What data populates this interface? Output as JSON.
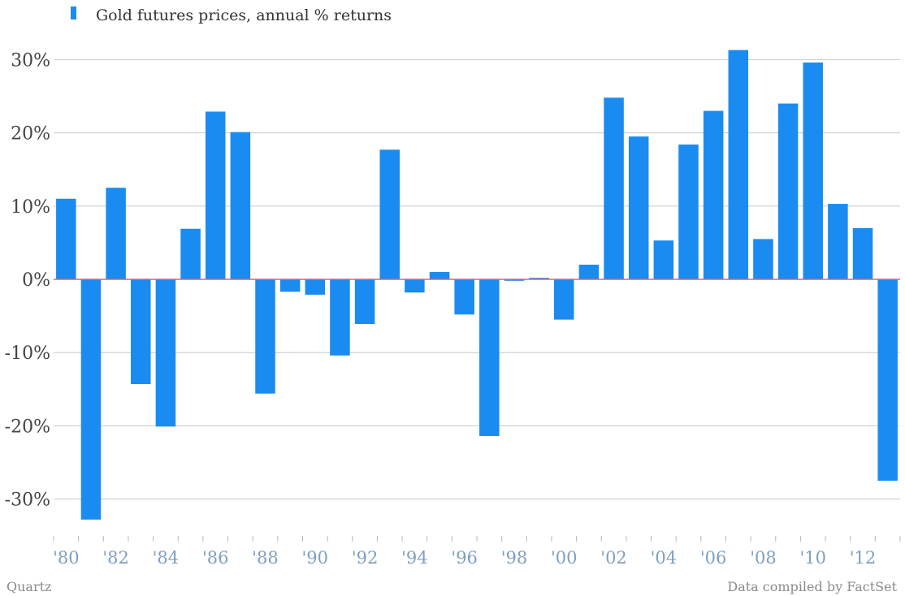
{
  "legend": {
    "label": "Gold futures prices, annual %  returns",
    "color": "#1a8bf0"
  },
  "footer": {
    "source_left": "Quartz",
    "source_right": "Data compiled by FactSet"
  },
  "colors": {
    "bar": "#1a8bf0",
    "zero_line": "#e0607a",
    "grid": "#c8c8c8",
    "y_tick_text": "#444444",
    "x_tick_text": "#7f9fbf",
    "footer_text": "#8a8a8a"
  },
  "chart_data": {
    "type": "bar",
    "categories": [
      "1980",
      "1981",
      "1982",
      "1983",
      "1984",
      "1985",
      "1986",
      "1987",
      "1988",
      "1989",
      "1990",
      "1991",
      "1992",
      "1993",
      "1994",
      "1995",
      "1996",
      "1997",
      "1998",
      "1999",
      "2000",
      "2001",
      "2002",
      "2003",
      "2004",
      "2005",
      "2006",
      "2007",
      "2008",
      "2009",
      "2010",
      "2011",
      "2012",
      "2013"
    ],
    "series": [
      {
        "name": "Gold futures prices, annual %  returns",
        "values": [
          11,
          -32.8,
          12.5,
          -14.3,
          -20.1,
          6.9,
          22.9,
          20.1,
          -15.6,
          -1.7,
          -2.1,
          -10.4,
          -6.1,
          17.7,
          -1.8,
          1.0,
          -4.8,
          -21.4,
          -0.2,
          0.2,
          -5.5,
          2.0,
          24.8,
          19.5,
          5.3,
          18.4,
          23.0,
          31.3,
          5.5,
          24.0,
          29.6,
          10.3,
          7.0,
          -27.5
        ]
      }
    ],
    "x_tick_labels": [
      "'80",
      "'82",
      "'84",
      "'86",
      "'88",
      "'90",
      "'92",
      "'94",
      "'96",
      "'98",
      "'00",
      "'02",
      "'04",
      "'06",
      "'08",
      "'10",
      "'12"
    ],
    "y_tick_labels": [
      "30%",
      "20%",
      "10%",
      "0%",
      "-10%",
      "-20%",
      "-30%"
    ],
    "y_ticks": [
      30,
      20,
      10,
      0,
      -10,
      -20,
      -30
    ],
    "title": "",
    "xlabel": "",
    "ylabel": "",
    "ylim": [
      -35,
      32
    ],
    "grid": true,
    "legend_position": "top-left"
  }
}
